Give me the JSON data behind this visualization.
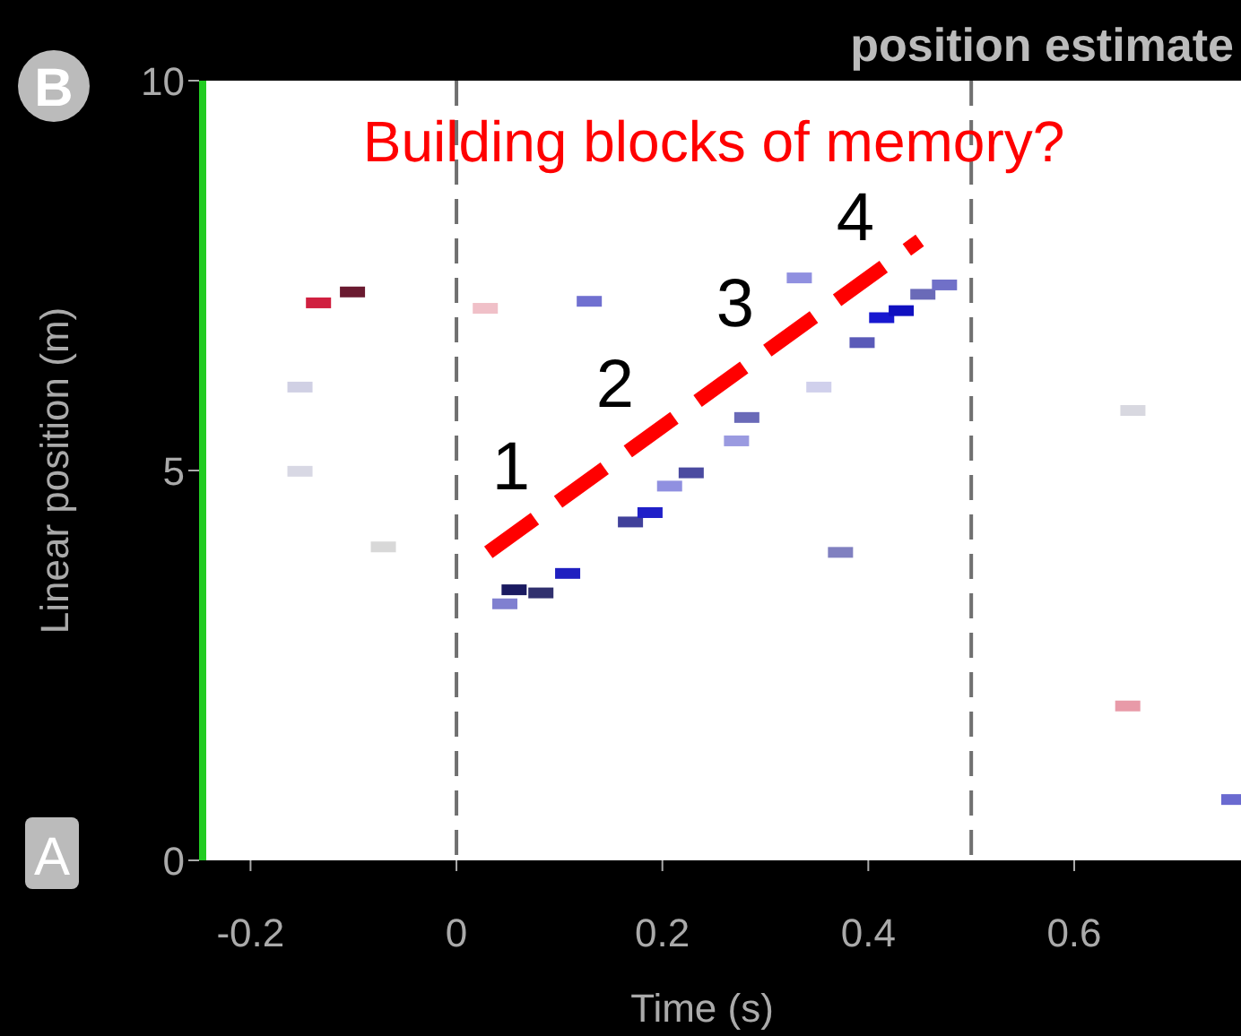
{
  "chart_data": {
    "type": "scatter",
    "title": "position estimate",
    "xlabel": "Time (s)",
    "ylabel": "Linear position (m)",
    "xlim": [
      -0.25,
      0.762
    ],
    "ylim": [
      0,
      10
    ],
    "xticks": [
      -0.2,
      0,
      0.2,
      0.4,
      0.6
    ],
    "yticks": [
      0,
      5,
      10
    ],
    "series": [
      {
        "marker": "square",
        "x": [
          0.047,
          0.056,
          0.082,
          0.108,
          0.169,
          0.188,
          0.207,
          0.228,
          0.272,
          0.282,
          0.333,
          0.394,
          0.413,
          0.432,
          0.453,
          0.474,
          0.373,
          0.352,
          0.129,
          -0.134,
          -0.101,
          0.028,
          0.652,
          0.755,
          -0.152,
          -0.152,
          -0.071,
          0.657
        ],
        "values": [
          3.29,
          3.47,
          3.43,
          3.68,
          4.34,
          4.46,
          4.8,
          4.97,
          5.38,
          5.68,
          7.47,
          6.64,
          6.96,
          7.05,
          7.26,
          7.38,
          3.95,
          6.07,
          7.17,
          7.15,
          7.29,
          7.08,
          1.98,
          0.78,
          6.07,
          4.99,
          4.02,
          5.77
        ],
        "colors": [
          "#8080d0",
          "#1a1a60",
          "#30306e",
          "#2020c0",
          "#40409a",
          "#2020c8",
          "#9090e0",
          "#4a4aa0",
          "#9a9ae0",
          "#6a6ab8",
          "#9090e0",
          "#5a5ab8",
          "#1818d0",
          "#1010c0",
          "#6a6ab8",
          "#7070c8",
          "#8080c0",
          "#d0d0ec",
          "#7070d0",
          "#d02040",
          "#6a1a30",
          "#f0c0c8",
          "#e89aa8",
          "#6a6ad0",
          "#d0d0e4",
          "#d8d8e4",
          "#d8d8d8",
          "#d8d8e0"
        ]
      },
      {
        "type": "line",
        "color": "#ff0000",
        "line_style": "dashed",
        "x": [
          0.031,
          0.45
        ],
        "values": [
          3.95,
          7.95
        ]
      }
    ],
    "ref_lines": [
      {
        "axis": "x",
        "value": 0,
        "color": "#707070",
        "line_style": "dashed"
      },
      {
        "axis": "x",
        "value": 0.5,
        "color": "#707070",
        "line_style": "dashed"
      }
    ],
    "annotations": [
      "Building blocks of memory?",
      "1",
      "2",
      "3",
      "4",
      "A",
      "B"
    ]
  }
}
